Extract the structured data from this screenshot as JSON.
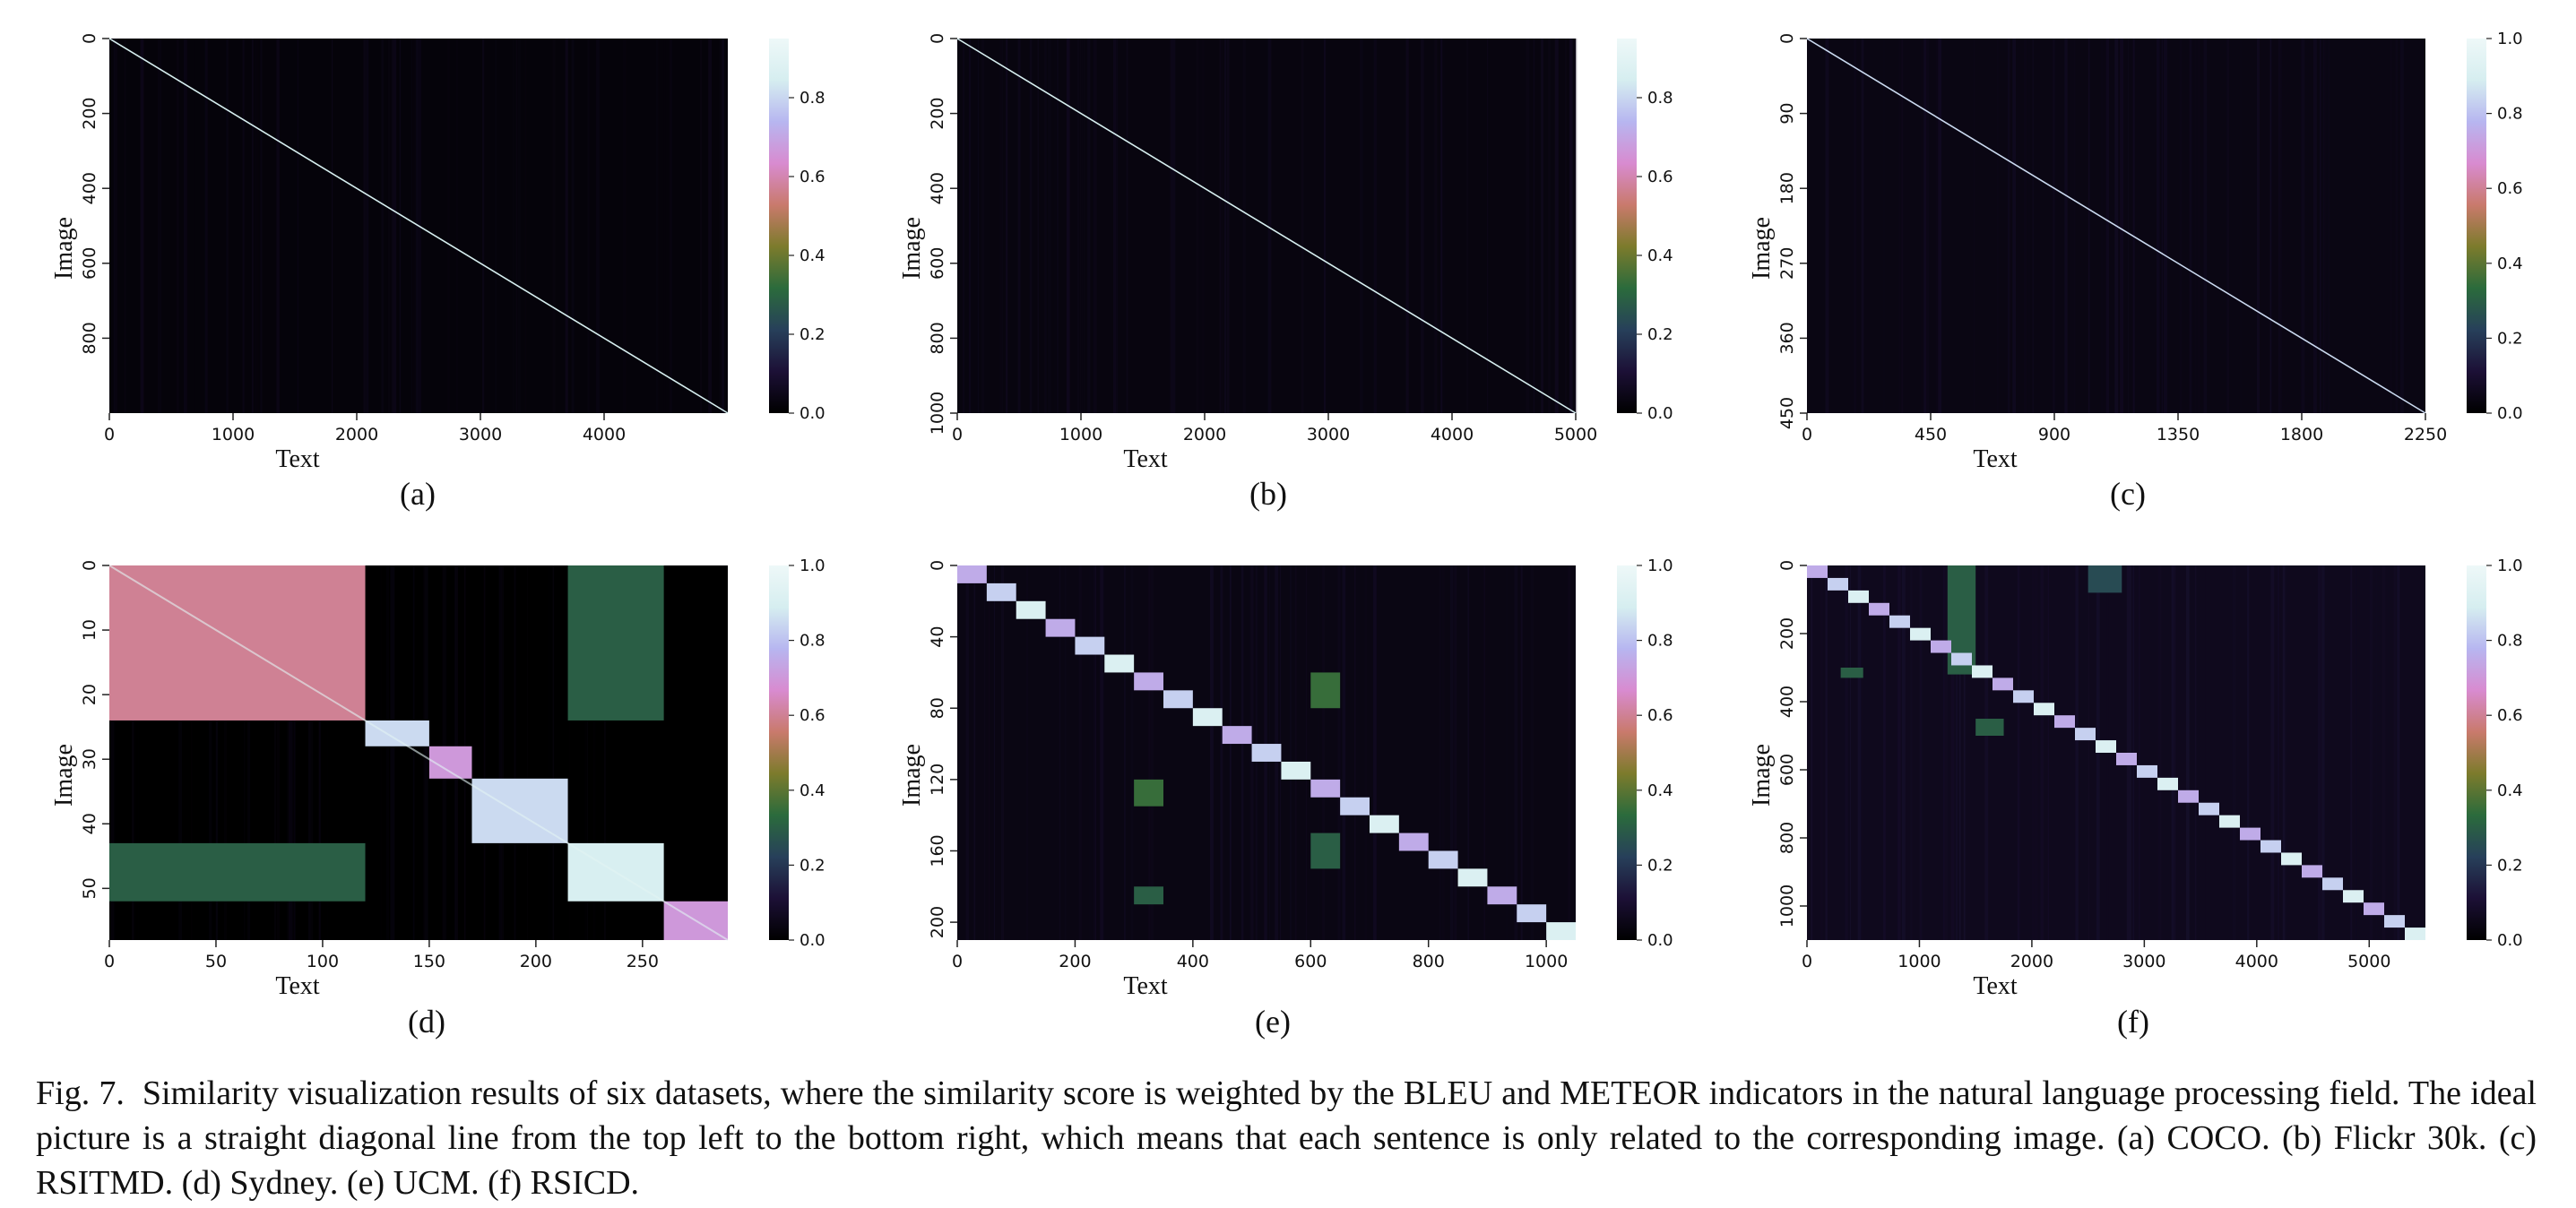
{
  "caption": {
    "label": "Fig. 7.",
    "text": "Similarity visualization results of six datasets, where the similarity score is weighted by the BLEU and METEOR indicators in the natural language processing field. The ideal picture is a straight diagonal line from the top left to the bottom right, which means that each sentence is only related to the corresponding image. (a) COCO. (b) Flickr 30k. (c) RSITMD. (d) Sydney. (e) UCM. (f) RSICD."
  },
  "colormap": [
    "#000000",
    "#1c1036",
    "#27405a",
    "#2b6b3c",
    "#7c7b2c",
    "#c97a6c",
    "#d88bd0",
    "#b7b6f0",
    "#d6eef0",
    "#eef8f8"
  ],
  "chart_data": [
    {
      "type": "heatmap",
      "sublabel": "(a)",
      "xlabel": "Text",
      "ylabel": "Image",
      "xticks": [
        "0",
        "1000",
        "2000",
        "3000",
        "4000"
      ],
      "xtick_values": [
        0,
        1000,
        2000,
        3000,
        4000
      ],
      "xlim": [
        0,
        5000
      ],
      "yticks": [
        "0",
        "200",
        "400",
        "600",
        "800"
      ],
      "ytick_values": [
        0,
        200,
        400,
        600,
        800
      ],
      "ylim": [
        0,
        1000
      ],
      "colorbar": {
        "ticks": [
          "0.0",
          "0.2",
          "0.4",
          "0.6",
          "0.8"
        ],
        "tick_values": [
          0,
          0.2,
          0.4,
          0.6,
          0.8
        ],
        "range": [
          0,
          0.95
        ]
      },
      "pattern": "diagonal",
      "background": 0.02,
      "blocks": []
    },
    {
      "type": "heatmap",
      "sublabel": "(b)",
      "xlabel": "Text",
      "ylabel": "Image",
      "xticks": [
        "0",
        "1000",
        "2000",
        "3000",
        "4000",
        "5000"
      ],
      "xtick_values": [
        0,
        1000,
        2000,
        3000,
        4000,
        5000
      ],
      "xlim": [
        0,
        5000
      ],
      "yticks": [
        "0",
        "200",
        "400",
        "600",
        "800",
        "1000"
      ],
      "ytick_values": [
        0,
        200,
        400,
        600,
        800,
        1000
      ],
      "ylim": [
        0,
        1000
      ],
      "colorbar": {
        "ticks": [
          "0.0",
          "0.2",
          "0.4",
          "0.6",
          "0.8"
        ],
        "tick_values": [
          0,
          0.2,
          0.4,
          0.6,
          0.8
        ],
        "range": [
          0,
          0.95
        ]
      },
      "pattern": "diagonal",
      "background": 0.03,
      "blocks": []
    },
    {
      "type": "heatmap",
      "sublabel": "(c)",
      "xlabel": "Text",
      "ylabel": "Image",
      "xticks": [
        "0",
        "450",
        "900",
        "1350",
        "1800",
        "2250"
      ],
      "xtick_values": [
        0,
        450,
        900,
        1350,
        1800,
        2250
      ],
      "xlim": [
        0,
        2250
      ],
      "yticks": [
        "0",
        "90",
        "180",
        "270",
        "360",
        "450"
      ],
      "ytick_values": [
        0,
        90,
        180,
        270,
        360,
        450
      ],
      "ylim": [
        0,
        450
      ],
      "colorbar": {
        "ticks": [
          "0.0",
          "0.2",
          "0.4",
          "0.6",
          "0.8",
          "1.0"
        ],
        "tick_values": [
          0,
          0.2,
          0.4,
          0.6,
          0.8,
          1.0
        ],
        "range": [
          0,
          1.0
        ]
      },
      "pattern": "diagonal",
      "background": 0.04,
      "blocks": []
    },
    {
      "type": "heatmap",
      "sublabel": "(d)",
      "xlabel": "Text",
      "ylabel": "Image",
      "xticks": [
        "0",
        "50",
        "100",
        "150",
        "200",
        "250"
      ],
      "xtick_values": [
        0,
        50,
        100,
        150,
        200,
        250
      ],
      "xlim": [
        0,
        290
      ],
      "yticks": [
        "0",
        "10",
        "20",
        "30",
        "40",
        "50"
      ],
      "ytick_values": [
        0,
        10,
        20,
        30,
        40,
        50
      ],
      "ylim": [
        0,
        58
      ],
      "colorbar": {
        "ticks": [
          "0.0",
          "0.2",
          "0.4",
          "0.6",
          "0.8",
          "1.0"
        ],
        "tick_values": [
          0,
          0.2,
          0.4,
          0.6,
          0.8,
          1.0
        ],
        "range": [
          0,
          1.0
        ]
      },
      "pattern": "blocks",
      "background": 0.0,
      "blocks": [
        [
          0,
          24,
          0,
          120,
          0.6
        ],
        [
          24,
          28,
          120,
          150,
          0.85
        ],
        [
          28,
          33,
          150,
          170,
          0.7
        ],
        [
          33,
          43,
          170,
          215,
          0.85
        ],
        [
          43,
          52,
          215,
          260,
          0.9
        ],
        [
          52,
          58,
          260,
          290,
          0.7
        ],
        [
          0,
          24,
          215,
          260,
          0.3
        ],
        [
          43,
          52,
          0,
          120,
          0.3
        ]
      ]
    },
    {
      "type": "heatmap",
      "sublabel": "(e)",
      "xlabel": "Text",
      "ylabel": "Image",
      "xticks": [
        "0",
        "200",
        "400",
        "600",
        "800",
        "1000"
      ],
      "xtick_values": [
        0,
        200,
        400,
        600,
        800,
        1000
      ],
      "xlim": [
        0,
        1050
      ],
      "yticks": [
        "0",
        "40",
        "80",
        "120",
        "160",
        "200"
      ],
      "ytick_values": [
        0,
        40,
        80,
        120,
        160,
        200
      ],
      "ylim": [
        0,
        210
      ],
      "colorbar": {
        "ticks": [
          "0.0",
          "0.2",
          "0.4",
          "0.6",
          "0.8",
          "1.0"
        ],
        "tick_values": [
          0,
          0.2,
          0.4,
          0.6,
          0.8,
          1.0
        ],
        "range": [
          0,
          1.0
        ]
      },
      "pattern": "block-diagonal",
      "n_blocks": 21,
      "background": 0.04,
      "blocks": [
        [
          60,
          80,
          600,
          650,
          0.35
        ],
        [
          120,
          135,
          300,
          350,
          0.35
        ],
        [
          150,
          170,
          600,
          650,
          0.3
        ],
        [
          180,
          190,
          300,
          350,
          0.3
        ]
      ]
    },
    {
      "type": "heatmap",
      "sublabel": "(f)",
      "xlabel": "Text",
      "ylabel": "Image",
      "xticks": [
        "0",
        "1000",
        "2000",
        "3000",
        "4000",
        "5000"
      ],
      "xtick_values": [
        0,
        1000,
        2000,
        3000,
        4000,
        5000
      ],
      "xlim": [
        0,
        5500
      ],
      "yticks": [
        "0",
        "200",
        "400",
        "600",
        "800",
        "1000"
      ],
      "ytick_values": [
        0,
        200,
        400,
        600,
        800,
        1000
      ],
      "ylim": [
        0,
        1100
      ],
      "colorbar": {
        "ticks": [
          "0.0",
          "0.2",
          "0.4",
          "0.6",
          "0.8",
          "1.0"
        ],
        "tick_values": [
          0,
          0.2,
          0.4,
          0.6,
          0.8,
          1.0
        ],
        "range": [
          0,
          1.0
        ]
      },
      "pattern": "block-diagonal",
      "n_blocks": 30,
      "background": 0.06,
      "blocks": [
        [
          0,
          320,
          1250,
          1500,
          0.3
        ],
        [
          300,
          330,
          300,
          500,
          0.3
        ],
        [
          450,
          500,
          1500,
          1750,
          0.3
        ],
        [
          0,
          80,
          2500,
          2800,
          0.25
        ]
      ]
    }
  ]
}
